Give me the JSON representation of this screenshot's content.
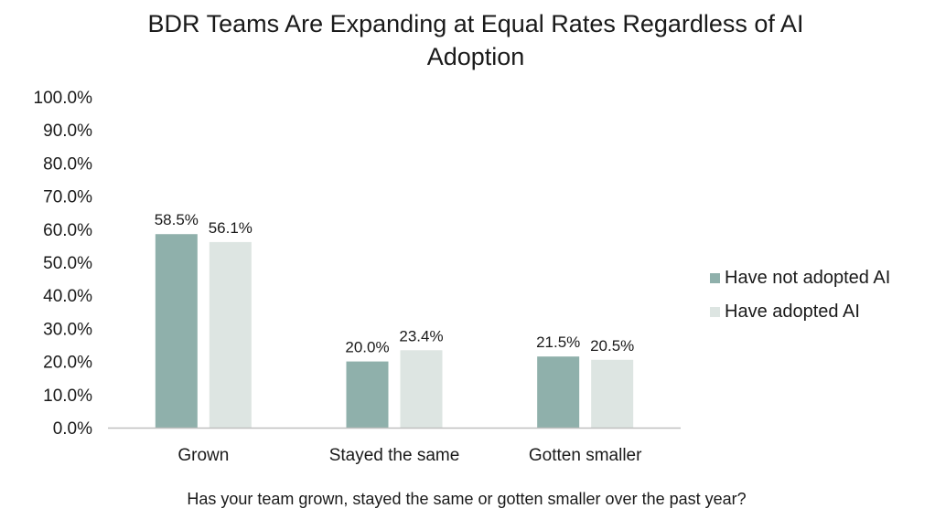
{
  "chart_data": {
    "type": "bar",
    "title_lines": [
      "BDR Teams Are Expanding at Equal Rates Regardless of AI",
      "Adoption"
    ],
    "xlabel": "Has your team grown, stayed the same or gotten smaller over the past year?",
    "ylabel": "",
    "categories": [
      "Grown",
      "Stayed the same",
      "Gotten smaller"
    ],
    "series": [
      {
        "name": "Have not adopted AI",
        "color": "#8fb0ab",
        "values": [
          58.5,
          20.0,
          21.5
        ],
        "labels": [
          "58.5%",
          "20.0%",
          "21.5%"
        ]
      },
      {
        "name": "Have adopted AI",
        "color": "#dde5e2",
        "values": [
          56.1,
          23.4,
          20.5
        ],
        "labels": [
          "56.1%",
          "23.4%",
          "20.5%"
        ]
      }
    ],
    "ylim": [
      0,
      100
    ],
    "y_ticks": [
      0,
      10,
      20,
      30,
      40,
      50,
      60,
      70,
      80,
      90,
      100
    ],
    "y_tick_labels": [
      "0.0%",
      "10.0%",
      "20.0%",
      "30.0%",
      "40.0%",
      "50.0%",
      "60.0%",
      "70.0%",
      "80.0%",
      "90.0%",
      "100.0%"
    ],
    "grid": false,
    "legend_position": "right",
    "axis_color": "#bfbfbf"
  }
}
